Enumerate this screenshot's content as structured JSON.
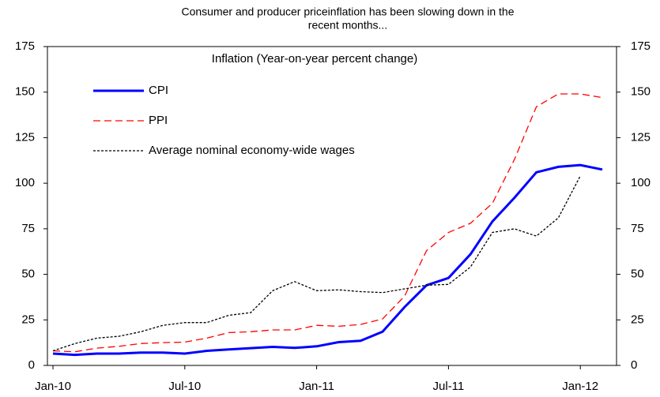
{
  "chart_data": {
    "type": "line",
    "title": [
      "Consumer and producer priceinflation has been slowing down in the",
      "recent months..."
    ],
    "legend_title": "Inflation (Year-on-year percent change)",
    "categories": [
      "Jan-10",
      null,
      null,
      null,
      null,
      null,
      "Jul-10",
      null,
      null,
      null,
      null,
      null,
      "Jan-11",
      null,
      null,
      null,
      null,
      null,
      "Jul-11",
      null,
      null,
      null,
      null,
      null,
      "Jan-12",
      null
    ],
    "series": [
      {
        "name": "CPI",
        "color": "#0000ff",
        "style": "solid",
        "values": [
          6.5,
          5.8,
          6.5,
          6.5,
          7,
          7,
          6.5,
          8,
          8.8,
          9.5,
          10.2,
          9.6,
          10.5,
          12.8,
          13.5,
          18.5,
          32,
          44,
          48,
          61,
          79,
          92,
          106,
          109,
          110,
          107.5
        ]
      },
      {
        "name": "PPI",
        "color": "#ff0000",
        "style": "dashed",
        "values": [
          8,
          7.5,
          9.5,
          10.5,
          12,
          12.5,
          12.8,
          15,
          18,
          18.5,
          19.5,
          19.5,
          22,
          21.5,
          22.5,
          25.5,
          38,
          63,
          73,
          78,
          89,
          113,
          142,
          149,
          149,
          147
        ]
      },
      {
        "name": "Average nominal economy-wide wages",
        "color": "#000000",
        "style": "dotted",
        "values": [
          8,
          12,
          15,
          16,
          18.5,
          22,
          23.5,
          23.5,
          27.5,
          29,
          41,
          46,
          41,
          41.5,
          40.5,
          40,
          42,
          44,
          44.5,
          54,
          73,
          75,
          71,
          81,
          104,
          null
        ]
      }
    ],
    "ylim": [
      0,
      175
    ],
    "yticks": [
      0,
      25,
      50,
      75,
      100,
      125,
      150,
      175
    ],
    "y2lim": [
      0,
      175
    ],
    "y2ticks": [
      0,
      25,
      50,
      75,
      100,
      125,
      150,
      175
    ],
    "grid": false
  }
}
